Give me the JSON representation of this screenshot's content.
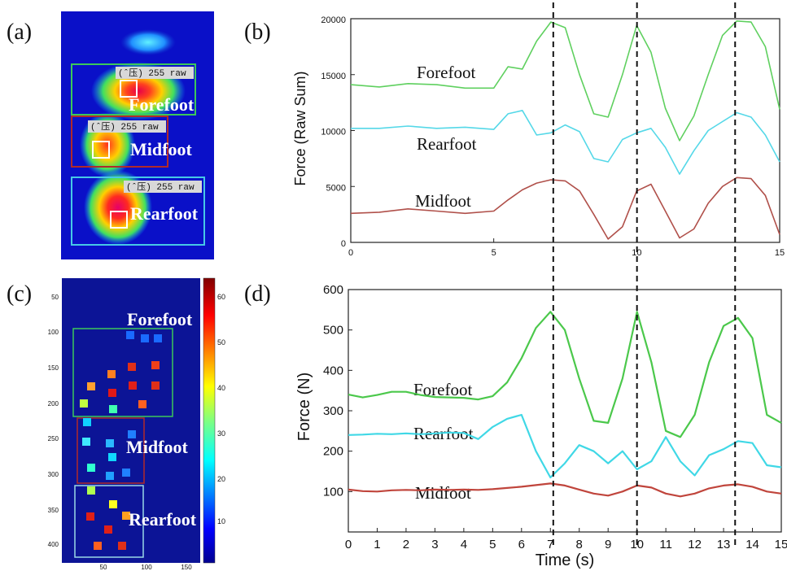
{
  "panel_labels": {
    "a": "(a)",
    "b": "(b)",
    "c": "(c)",
    "d": "(d)"
  },
  "region_labels": {
    "forefoot": "Forefoot",
    "midfoot": "Midfoot",
    "rearfoot": "Rearfoot"
  },
  "panel_a": {
    "tags": [
      "(ˆ压) 255 raw",
      "(ˆ压) 255 raw",
      "(ˆ压) 255 raw"
    ],
    "box_colors": {
      "forefoot": "#3cc85a",
      "midfoot": "#b02a2a",
      "rearfoot": "#46c8e6"
    }
  },
  "panel_c": {
    "y_ticks": [
      "50",
      "100",
      "150",
      "200",
      "250",
      "300",
      "350",
      "400"
    ],
    "x_ticks": [
      "50",
      "100",
      "150"
    ],
    "colorbar_ticks": [
      "60",
      "50",
      "40",
      "30",
      "20",
      "10"
    ]
  },
  "chart_data": [
    {
      "type": "line",
      "panel": "(b)",
      "xlabel": "",
      "ylabel": "Force (Raw Sum)",
      "xlim": [
        0,
        15
      ],
      "ylim": [
        0,
        20000
      ],
      "x_ticks": [
        "0",
        "5",
        "10",
        "15"
      ],
      "y_ticks": [
        "0",
        "5000",
        "10000",
        "15000",
        "20000"
      ],
      "vlines": [
        7.1,
        10.0,
        13.4
      ],
      "x": [
        0,
        1,
        2,
        3,
        4,
        5,
        5.5,
        6,
        6.5,
        7,
        7.5,
        8,
        8.5,
        9,
        9.5,
        10,
        10.5,
        11,
        11.5,
        12,
        12.5,
        13,
        13.5,
        14,
        14.5,
        15
      ],
      "series": [
        {
          "name": "Forefoot",
          "color": "#5fd05f",
          "values": [
            14100,
            13900,
            14200,
            14100,
            13800,
            13800,
            15700,
            15500,
            18000,
            19700,
            19200,
            15000,
            11500,
            11200,
            15000,
            19400,
            17000,
            12000,
            9100,
            11300,
            15000,
            18500,
            19800,
            19700,
            17500,
            11900
          ]
        },
        {
          "name": "Rearfoot",
          "color": "#55d8e8",
          "values": [
            10200,
            10200,
            10400,
            10200,
            10300,
            10100,
            11500,
            11800,
            9600,
            9800,
            10500,
            9900,
            7500,
            7200,
            9200,
            9800,
            10200,
            8500,
            6100,
            8200,
            10000,
            10800,
            11600,
            11200,
            9600,
            7200
          ]
        },
        {
          "name": "Midfoot",
          "color": "#b0504a",
          "values": [
            2600,
            2700,
            3000,
            2800,
            2600,
            2800,
            3800,
            4700,
            5300,
            5600,
            5500,
            4600,
            2500,
            300,
            1400,
            4600,
            5200,
            2800,
            400,
            1200,
            3500,
            5000,
            5800,
            5700,
            4200,
            700
          ]
        }
      ]
    },
    {
      "type": "line",
      "panel": "(d)",
      "xlabel": "Time (s)",
      "ylabel": "Force (N)",
      "xlim": [
        0,
        15
      ],
      "ylim": [
        0,
        600
      ],
      "x_ticks": [
        "0",
        "1",
        "2",
        "3",
        "4",
        "5",
        "6",
        "7",
        "8",
        "9",
        "10",
        "11",
        "12",
        "13",
        "14",
        "15"
      ],
      "y_ticks": [
        "0",
        "100",
        "200",
        "300",
        "400",
        "500",
        "600"
      ],
      "vlines": [
        7.1,
        10.0,
        13.4
      ],
      "x": [
        0,
        0.5,
        1,
        1.5,
        2,
        2.5,
        3,
        3.5,
        4,
        4.5,
        5,
        5.5,
        6,
        6.5,
        7,
        7.5,
        8,
        8.5,
        9,
        9.5,
        10,
        10.5,
        11,
        11.5,
        12,
        12.5,
        13,
        13.5,
        14,
        14.5,
        15
      ],
      "series": [
        {
          "name": "Forefoot",
          "color": "#4bc84b",
          "values": [
            340,
            333,
            339,
            347,
            347,
            339,
            334,
            333,
            332,
            328,
            336,
            370,
            430,
            505,
            545,
            500,
            380,
            275,
            270,
            380,
            545,
            420,
            250,
            235,
            290,
            420,
            510,
            530,
            480,
            290,
            270
          ]
        },
        {
          "name": "Rearfoot",
          "color": "#40d8e6",
          "values": [
            240,
            241,
            243,
            242,
            244,
            242,
            244,
            246,
            245,
            230,
            260,
            280,
            290,
            200,
            135,
            170,
            215,
            200,
            170,
            200,
            155,
            175,
            235,
            175,
            140,
            190,
            205,
            225,
            220,
            165,
            160
          ]
        },
        {
          "name": "Midfoot",
          "color": "#c0453c",
          "values": [
            105,
            101,
            100,
            103,
            104,
            103,
            105,
            104,
            105,
            104,
            106,
            109,
            112,
            116,
            120,
            115,
            105,
            95,
            90,
            100,
            115,
            110,
            95,
            88,
            95,
            108,
            115,
            118,
            112,
            100,
            95
          ]
        }
      ]
    }
  ]
}
